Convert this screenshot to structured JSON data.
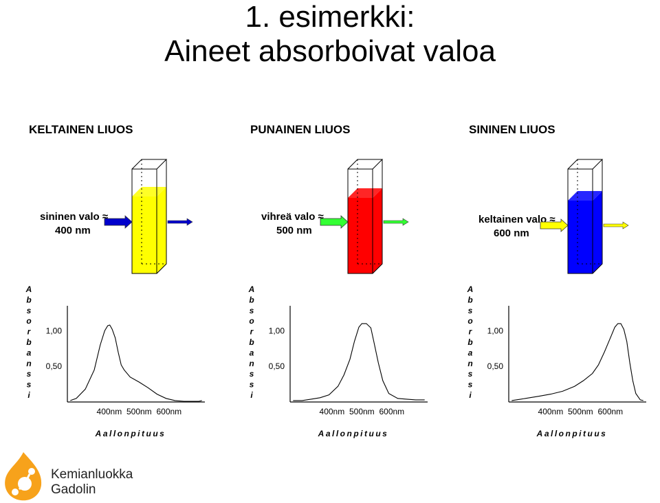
{
  "title": {
    "line1": "1.   esimerkki:",
    "line2": "Aineet absorboivat valoa"
  },
  "colors": {
    "yellow_solution": "#ffff00",
    "red_solution": "#ff0000",
    "blue_solution": "#0000ff",
    "arrow_blue": "#0000cc",
    "arrow_green": "#33ff33",
    "arrow_yellow": "#ffff00",
    "logo_orange": "#f7a21b"
  },
  "panels": [
    {
      "title": "KELTAINEN LIUOS",
      "solution_color": "#ffff00",
      "light_label_1": "sininen valo ≈",
      "light_label_2": "400 nm",
      "arrow_in_color": "#0000cc",
      "arrow_out_color": "#0000cc"
    },
    {
      "title": "PUNAINEN LIUOS",
      "solution_color": "#ff0000",
      "light_label_1": "vihreä valo ≈",
      "light_label_2": "500 nm",
      "arrow_in_color": "#33ff33",
      "arrow_out_color": "#33ff33"
    },
    {
      "title": "SININEN LIUOS",
      "solution_color": "#0000ff",
      "light_label_1": "keltainen valo ≈",
      "light_label_2": "600 nm",
      "arrow_in_color": "#ffff00",
      "arrow_out_color": "#ffff00"
    }
  ],
  "chart_data": [
    {
      "type": "line",
      "ylabel": "Absorbanssi",
      "xlabel": "Aallonpituus",
      "x_ticks": [
        "400nm",
        "500nm",
        "600nm"
      ],
      "y_ticks": [
        "1,00",
        "0,50"
      ],
      "xlim": [
        260,
        720
      ],
      "ylim": [
        0,
        1.35
      ],
      "grid": false,
      "series": [
        {
          "x": [
            270,
            290,
            320,
            350,
            370,
            385,
            395,
            402,
            410,
            420,
            430,
            440,
            450,
            470,
            500,
            530,
            560,
            590,
            620,
            650,
            680,
            700,
            710
          ],
          "y": [
            0.02,
            0.05,
            0.18,
            0.45,
            0.8,
            1.0,
            1.07,
            1.08,
            1.02,
            0.9,
            0.7,
            0.52,
            0.45,
            0.35,
            0.28,
            0.2,
            0.11,
            0.05,
            0.02,
            0.01,
            0.01,
            0.01,
            0.02
          ]
        }
      ]
    },
    {
      "type": "line",
      "ylabel": "Absorbanssi",
      "xlabel": "Aallonpituus",
      "x_ticks": [
        "400nm",
        "500nm",
        "600nm"
      ],
      "y_ticks": [
        "1,00",
        "0,50"
      ],
      "xlim": [
        260,
        720
      ],
      "ylim": [
        0,
        1.35
      ],
      "grid": false,
      "series": [
        {
          "x": [
            270,
            300,
            330,
            360,
            390,
            420,
            440,
            460,
            475,
            490,
            500,
            515,
            530,
            540,
            555,
            570,
            590,
            620,
            650,
            680,
            700,
            710
          ],
          "y": [
            0.02,
            0.02,
            0.04,
            0.06,
            0.1,
            0.22,
            0.38,
            0.6,
            0.85,
            1.05,
            1.1,
            1.1,
            1.04,
            0.85,
            0.55,
            0.3,
            0.12,
            0.05,
            0.04,
            0.03,
            0.03,
            0.03
          ]
        }
      ]
    },
    {
      "type": "line",
      "ylabel": "Absorbanssi",
      "xlabel": "Aallonpituus",
      "x_ticks": [
        "400nm",
        "500nm",
        "600nm"
      ],
      "y_ticks": [
        "1,00",
        "0,50"
      ],
      "xlim": [
        260,
        720
      ],
      "ylim": [
        0,
        1.35
      ],
      "grid": false,
      "series": [
        {
          "x": [
            270,
            300,
            330,
            360,
            400,
            440,
            480,
            510,
            540,
            560,
            580,
            600,
            615,
            625,
            635,
            645,
            655,
            665,
            675,
            685,
            700,
            710
          ],
          "y": [
            0.02,
            0.04,
            0.06,
            0.08,
            0.11,
            0.15,
            0.22,
            0.3,
            0.4,
            0.52,
            0.7,
            0.9,
            1.05,
            1.1,
            1.1,
            1.02,
            0.85,
            0.55,
            0.3,
            0.12,
            0.03,
            0.02
          ]
        }
      ]
    }
  ],
  "logo": {
    "line1": "Kemianluokka",
    "line2": "Gadolin"
  }
}
